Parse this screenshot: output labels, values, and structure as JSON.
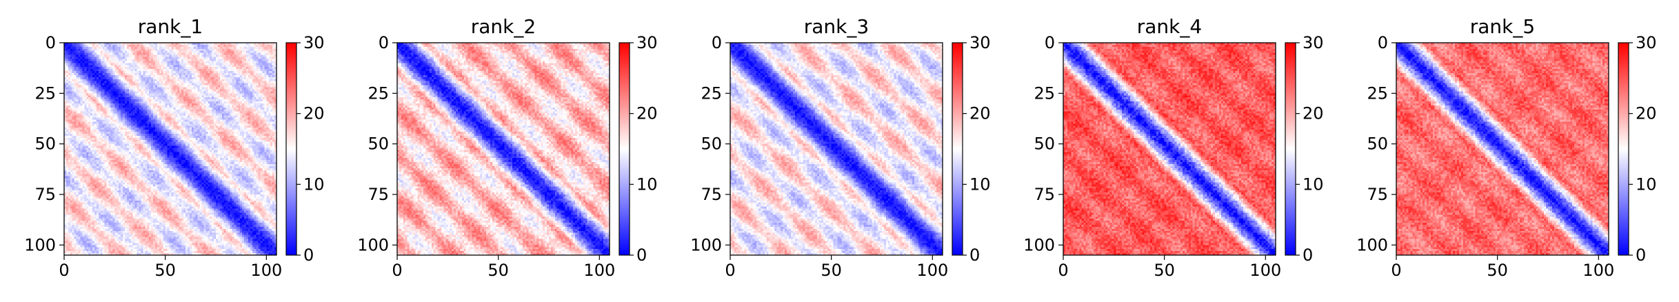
{
  "figure": {
    "background": "#ffffff",
    "colormap": "bwr",
    "colormap_stops": [
      "#0000ff",
      "#ffffff",
      "#ff0000"
    ]
  },
  "chart_data": [
    {
      "type": "heatmap",
      "title": "rank_1",
      "matrix_size": 105,
      "xticks": [
        0,
        50,
        100
      ],
      "yticks": [
        0,
        25,
        50,
        75,
        100
      ],
      "xlim": [
        0,
        105
      ],
      "ylim": [
        105,
        0
      ],
      "colorbar": {
        "ticks": [
          0,
          10,
          20,
          30
        ],
        "range": [
          0,
          30
        ]
      },
      "pattern": {
        "diagonal": 0.5,
        "near_band": 8,
        "far_base": 12,
        "repeat_period": 22,
        "repeat_strength": 0.6,
        "noise": 1.8
      }
    },
    {
      "type": "heatmap",
      "title": "rank_2",
      "matrix_size": 105,
      "xticks": [
        0,
        50,
        100
      ],
      "yticks": [
        0,
        25,
        50,
        75,
        100
      ],
      "xlim": [
        0,
        105
      ],
      "ylim": [
        105,
        0
      ],
      "colorbar": {
        "ticks": [
          0,
          10,
          20,
          30
        ],
        "range": [
          0,
          30
        ]
      },
      "pattern": {
        "diagonal": 0.5,
        "near_band": 8,
        "far_base": 15,
        "repeat_period": 22,
        "repeat_strength": 0.55,
        "noise": 2.2
      }
    },
    {
      "type": "heatmap",
      "title": "rank_3",
      "matrix_size": 105,
      "xticks": [
        0,
        50,
        100
      ],
      "yticks": [
        0,
        25,
        50,
        75,
        100
      ],
      "xlim": [
        0,
        105
      ],
      "ylim": [
        105,
        0
      ],
      "colorbar": {
        "ticks": [
          0,
          10,
          20,
          30
        ],
        "range": [
          0,
          30
        ]
      },
      "pattern": {
        "diagonal": 0.5,
        "near_band": 8,
        "far_base": 12,
        "repeat_period": 22,
        "repeat_strength": 0.6,
        "noise": 1.8
      }
    },
    {
      "type": "heatmap",
      "title": "rank_4",
      "matrix_size": 105,
      "xticks": [
        0,
        50,
        100
      ],
      "yticks": [
        0,
        25,
        50,
        75,
        100
      ],
      "xlim": [
        0,
        105
      ],
      "ylim": [
        105,
        0
      ],
      "colorbar": {
        "ticks": [
          0,
          10,
          20,
          30
        ],
        "range": [
          0,
          30
        ]
      },
      "pattern": {
        "diagonal": 0.5,
        "near_band": 7,
        "far_base": 23,
        "repeat_period": 22,
        "repeat_strength": 0.25,
        "noise": 2.5
      }
    },
    {
      "type": "heatmap",
      "title": "rank_5",
      "matrix_size": 105,
      "xticks": [
        0,
        50,
        100
      ],
      "yticks": [
        0,
        25,
        50,
        75,
        100
      ],
      "xlim": [
        0,
        105
      ],
      "ylim": [
        105,
        0
      ],
      "colorbar": {
        "ticks": [
          0,
          10,
          20,
          30
        ],
        "range": [
          0,
          30
        ]
      },
      "pattern": {
        "diagonal": 0.5,
        "near_band": 7,
        "far_base": 22,
        "repeat_period": 22,
        "repeat_strength": 0.25,
        "noise": 2.5
      }
    }
  ]
}
